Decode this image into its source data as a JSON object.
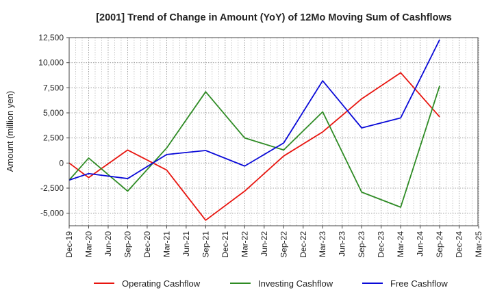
{
  "chart_data": {
    "type": "line",
    "title": "[2001]  Trend of Change in Amount (YoY) of 12Mo Moving Sum of Cashflows",
    "xlabel": "",
    "ylabel": "Amount (million yen)",
    "ylim": [
      -6250,
      12500
    ],
    "yticks": [
      -5000,
      -2500,
      0,
      2500,
      5000,
      7500,
      10000,
      12500
    ],
    "ytick_labels": [
      "-5,000",
      "-2,500",
      "0",
      "2,500",
      "5,000",
      "7,500",
      "10,000",
      "12,500"
    ],
    "categories": [
      "Dec-19",
      "Mar-20",
      "Jun-20",
      "Sep-20",
      "Dec-20",
      "Mar-21",
      "Jun-21",
      "Sep-21",
      "Dec-21",
      "Mar-22",
      "Jun-22",
      "Sep-22",
      "Dec-22",
      "Mar-23",
      "Jun-23",
      "Sep-23",
      "Dec-23",
      "Mar-24",
      "Jun-24",
      "Sep-24",
      "Dec-24",
      "Mar-25"
    ],
    "grid": true,
    "legend_position": "bottom",
    "series": [
      {
        "name": "Operating Cashflow",
        "color": "#e8150f",
        "values": [
          0,
          -1450,
          null,
          1300,
          null,
          -700,
          null,
          -5700,
          null,
          -2800,
          null,
          700,
          null,
          3100,
          null,
          6400,
          null,
          9000,
          null,
          4600,
          null,
          null
        ]
      },
      {
        "name": "Investing Cashflow",
        "color": "#2e8b24",
        "values": [
          -1700,
          500,
          null,
          -2800,
          null,
          1500,
          null,
          7100,
          null,
          2500,
          null,
          1300,
          null,
          5100,
          null,
          -2900,
          null,
          -4400,
          null,
          7700,
          null,
          null
        ]
      },
      {
        "name": "Free Cashflow",
        "color": "#0a0ad8",
        "values": [
          -1700,
          -1050,
          null,
          -1550,
          null,
          850,
          null,
          1250,
          null,
          -300,
          null,
          2000,
          null,
          8200,
          null,
          3500,
          null,
          4500,
          null,
          12300,
          null,
          null
        ]
      }
    ]
  }
}
